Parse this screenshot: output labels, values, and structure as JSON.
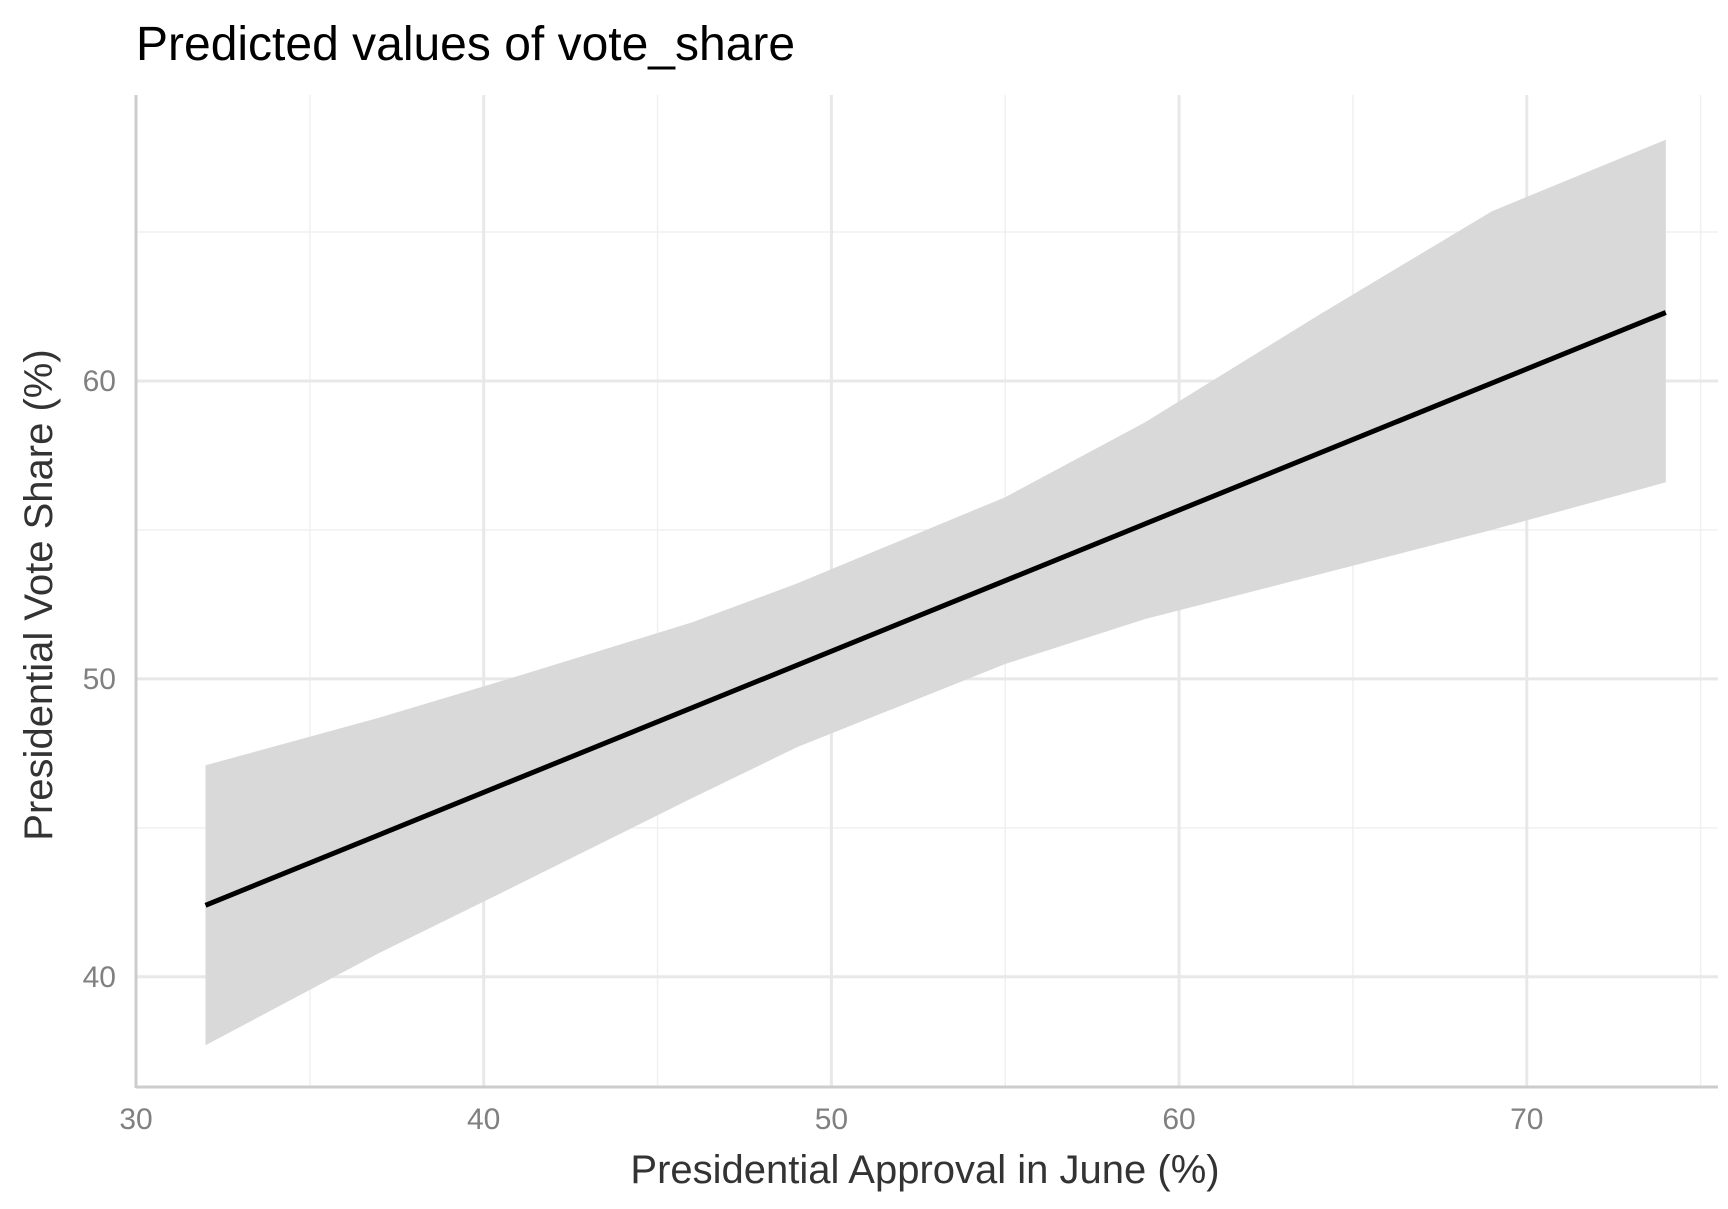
{
  "chart_data": {
    "type": "line",
    "title": "Predicted values of vote_share",
    "xlabel": "Presidential Approval in June (%)",
    "ylabel": "Presidential Vote Share (%)",
    "xlim": [
      30,
      75.5
    ],
    "ylim": [
      36.3,
      69.6
    ],
    "xticks": [
      30,
      40,
      50,
      60,
      70
    ],
    "xtick_labels": [
      "30",
      "40",
      "50",
      "60",
      "70"
    ],
    "yticks": [
      40,
      50,
      60
    ],
    "ytick_labels": [
      "40",
      "50",
      "60"
    ],
    "grid": true,
    "series": [
      {
        "color": "#000000",
        "x": [
          32,
          74
        ],
        "y": [
          42.4,
          62.3
        ]
      }
    ],
    "confidence_band": {
      "color": "#d9d9d9",
      "x": [
        32,
        37,
        41,
        46,
        49,
        55,
        59,
        64,
        69,
        74
      ],
      "lower": [
        37.7,
        40.8,
        43.1,
        46.0,
        47.7,
        50.5,
        52.0,
        53.5,
        55.0,
        56.6
      ],
      "upper": [
        47.1,
        48.7,
        50.1,
        51.9,
        53.2,
        56.1,
        58.6,
        62.2,
        65.7,
        68.1
      ]
    }
  }
}
